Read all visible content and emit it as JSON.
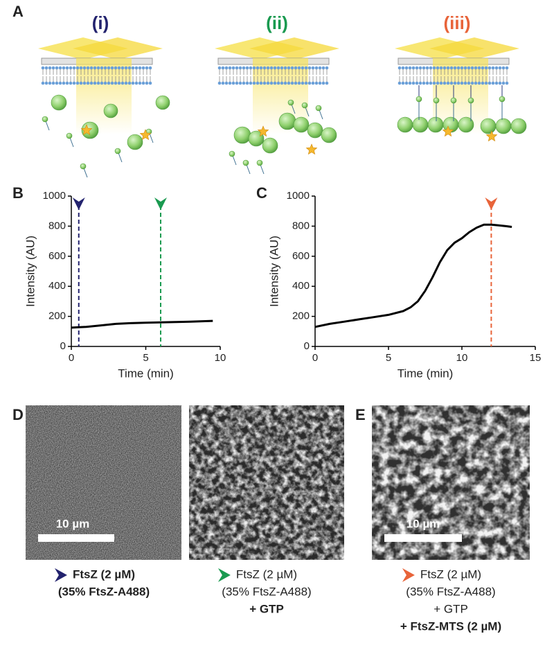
{
  "panel_labels": [
    "A",
    "B",
    "C",
    "D",
    "E"
  ],
  "schematic": {
    "titles": [
      {
        "text": "(i)",
        "color": "#23236e"
      },
      {
        "text": "(ii)",
        "color": "#1a9a50"
      },
      {
        "text": "(iii)",
        "color": "#e8643a"
      }
    ]
  },
  "chart_data": [
    {
      "type": "line",
      "xlabel": "Time (min)",
      "ylabel": "Intensity (AU)",
      "xlim": [
        0,
        10
      ],
      "ylim": [
        0,
        1000
      ],
      "xticks": [
        0,
        5,
        10
      ],
      "yticks": [
        0,
        200,
        400,
        600,
        800,
        1000
      ],
      "series": [
        {
          "color": "#000000",
          "x": [
            0,
            0.5,
            1,
            2,
            3,
            4,
            5,
            6,
            7,
            8,
            9,
            9.5
          ],
          "values": [
            125,
            128,
            130,
            140,
            150,
            155,
            158,
            160,
            162,
            165,
            168,
            170
          ]
        }
      ],
      "markers": [
        {
          "x": 0.5,
          "color": "#23236e"
        },
        {
          "x": 6,
          "color": "#1a9a50"
        }
      ]
    },
    {
      "type": "line",
      "xlabel": "Time (min)",
      "ylabel": "Intensity (AU)",
      "xlim": [
        0,
        15
      ],
      "ylim": [
        0,
        1000
      ],
      "xticks": [
        0,
        5,
        10,
        15
      ],
      "yticks": [
        0,
        200,
        400,
        600,
        800,
        1000
      ],
      "series": [
        {
          "color": "#000000",
          "x": [
            0,
            1,
            2,
            3,
            4,
            5,
            6,
            6.5,
            7,
            7.5,
            8,
            8.5,
            9,
            9.5,
            10,
            10.5,
            11,
            11.5,
            12,
            12.5,
            13,
            13.4
          ],
          "values": [
            130,
            150,
            165,
            180,
            195,
            210,
            235,
            260,
            300,
            370,
            460,
            560,
            640,
            690,
            720,
            760,
            790,
            810,
            810,
            805,
            800,
            795
          ]
        }
      ],
      "markers": [
        {
          "x": 12,
          "color": "#e8643a"
        }
      ]
    }
  ],
  "scale_bar": "10 µm",
  "captions": [
    {
      "color": "#23236e",
      "lines": [
        {
          "text": "FtsZ (2 µM)",
          "bold": true
        },
        {
          "text": "(35% FtsZ-A488)",
          "bold": true
        }
      ]
    },
    {
      "color": "#1a9a50",
      "lines": [
        {
          "text": "FtsZ (2 µM)",
          "bold": false
        },
        {
          "text": "(35% FtsZ-A488)",
          "bold": false
        },
        {
          "text": "+ GTP",
          "bold": true
        }
      ]
    },
    {
      "color": "#e8643a",
      "lines": [
        {
          "text": "FtsZ (2 µM)",
          "bold": false
        },
        {
          "text": "(35% FtsZ-A488)",
          "bold": false
        },
        {
          "text": "+ GTP",
          "bold": false
        },
        {
          "text": "+ FtsZ-MTS (2 µM)",
          "bold": true
        }
      ]
    }
  ]
}
